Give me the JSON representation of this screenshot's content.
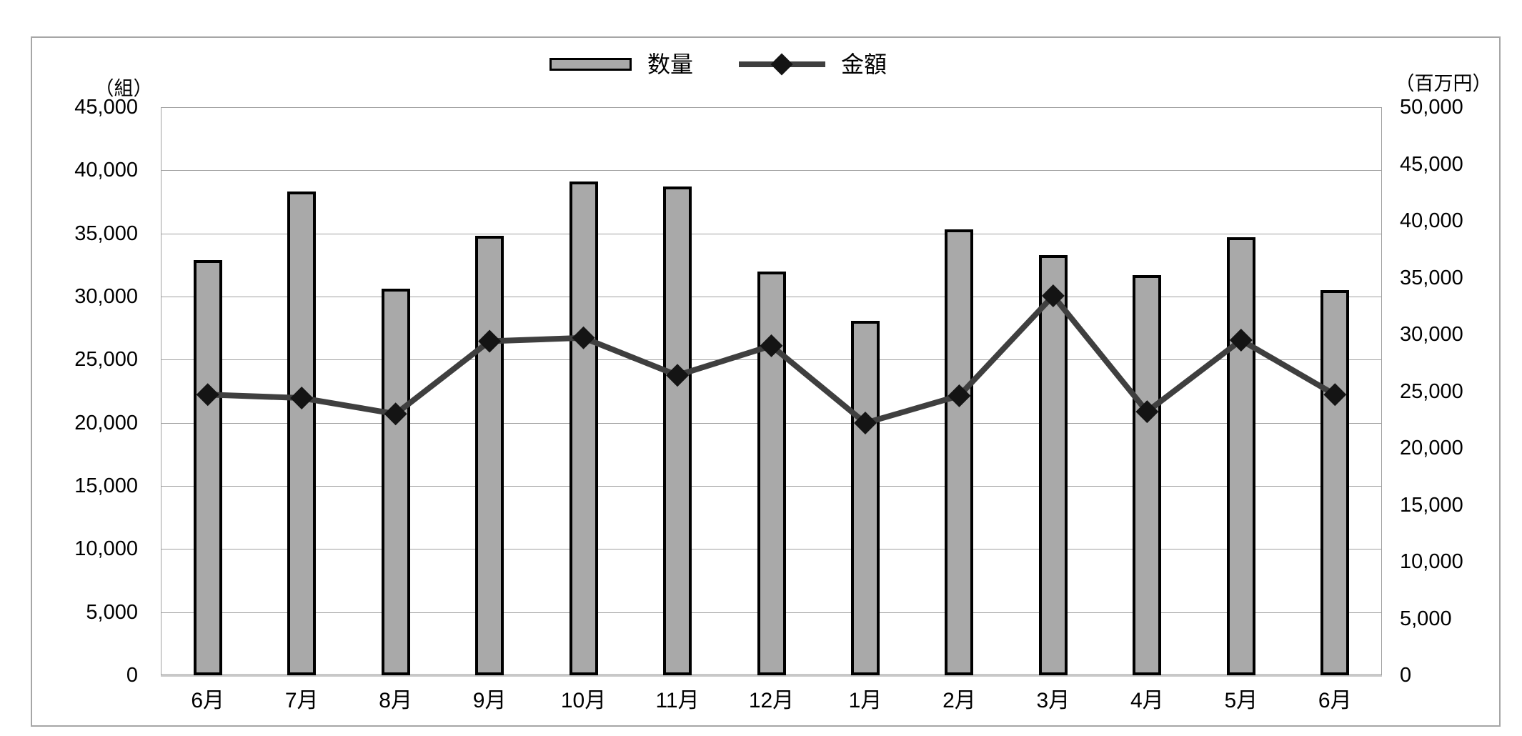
{
  "chart_data": {
    "type": "bar",
    "subtype": "combo-bar-line",
    "categories": [
      "6月",
      "7月",
      "8月",
      "9月",
      "10月",
      "11月",
      "12月",
      "1月",
      "2月",
      "3月",
      "4月",
      "5月",
      "6月"
    ],
    "series": [
      {
        "name": "数量",
        "type": "bar",
        "axis": "left",
        "values": [
          32900,
          38300,
          30600,
          34800,
          39100,
          38700,
          32000,
          28100,
          35300,
          33300,
          31700,
          34700,
          30500
        ]
      },
      {
        "name": "金額",
        "type": "line",
        "axis": "right",
        "values": [
          24700,
          24400,
          23000,
          29400,
          29700,
          26400,
          29000,
          22200,
          24600,
          33400,
          23200,
          29500,
          24700
        ]
      }
    ],
    "left_axis": {
      "unit": "（組）",
      "min": 0,
      "max": 45000,
      "step": 5000,
      "tick_labels": [
        "45,000",
        "40,000",
        "35,000",
        "30,000",
        "25,000",
        "20,000",
        "15,000",
        "10,000",
        "5,000",
        "0"
      ]
    },
    "right_axis": {
      "unit": "（百万円）",
      "min": 0,
      "max": 50000,
      "step": 5000,
      "tick_labels": [
        "50,000",
        "45,000",
        "40,000",
        "35,000",
        "30,000",
        "25,000",
        "20,000",
        "15,000",
        "10,000",
        "5,000",
        "0"
      ]
    },
    "grid": true,
    "legend_position": "top-center",
    "colors": {
      "bar_fill": "#a9a9a9",
      "bar_border": "#000000",
      "line": "#3f3f3f",
      "marker": "#141414",
      "grid": "#a0a0a0",
      "baseline": "#c8c8c8",
      "figure_border": "#a6a6a6",
      "text": "#000000"
    }
  }
}
